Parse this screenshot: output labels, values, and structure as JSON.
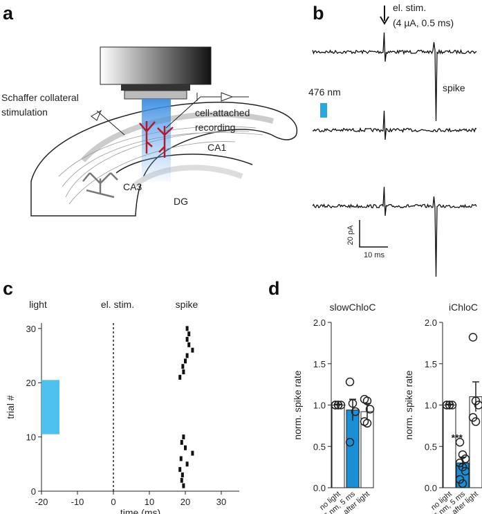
{
  "figure": {
    "panel_labels": [
      "a",
      "b",
      "c",
      "d"
    ]
  },
  "diagram": {
    "stimulation_label": [
      "Schaffer collateral",
      "stimulation"
    ],
    "recording_label": [
      "cell-attached",
      "recording"
    ],
    "regions": [
      "CA1",
      "CA3",
      "DG"
    ]
  },
  "traces": {
    "stim_label": [
      "el. stim.",
      "(4 µA, 0.5 ms)"
    ],
    "spike_label": "spike",
    "light_label": "476 nm",
    "light_color": "#29a8e0",
    "scale_y_label": "20 pA",
    "scale_x_label": "10 ms"
  },
  "chart_data": [
    {
      "type": "scatter",
      "xlabel": "time (ms)",
      "ylabel": "trial #",
      "annotations": [
        "light",
        "el. stim.",
        "spike"
      ],
      "x": [
        19.5,
        19,
        19.2,
        18.5,
        20.5,
        18.8,
        22,
        20,
        19,
        19.5,
        18.5,
        19.5,
        19.3,
        20,
        20.5,
        22,
        21,
        20.5,
        21,
        20.5
      ],
      "y": [
        1,
        2,
        3,
        4,
        5,
        6,
        7,
        8,
        9,
        10,
        21,
        22,
        23,
        24,
        25,
        26,
        27,
        28,
        29,
        30
      ],
      "color": "#111111",
      "light": {
        "x": [
          -20,
          -15
        ],
        "y": [
          10.5,
          20.5
        ],
        "color": "#4ec1ef"
      },
      "stim_x": 0,
      "xlim": [
        -20,
        35
      ],
      "ylim": [
        0,
        31
      ],
      "xticks": [
        -20,
        -10,
        0,
        10,
        20,
        30
      ],
      "yticks": [
        0,
        10,
        20,
        30
      ]
    },
    {
      "type": "bar",
      "title": "slowChloC",
      "ylabel": "norm. spike rate",
      "categories": [
        "no light",
        "476 nm, 5 ms",
        "after light"
      ],
      "values": [
        1.0,
        0.94,
        0.92
      ],
      "errors": [
        0.01,
        0.13,
        0.1
      ],
      "colors": [
        "#ffffff",
        "#1b8fd5",
        "#ffffff"
      ],
      "points": [
        [
          1,
          1,
          1,
          1,
          1
        ],
        [
          1.28,
          1.02,
          0.92,
          0.55
        ],
        [
          1.07,
          1.05,
          0.95,
          0.8,
          0.78
        ]
      ],
      "ylim": [
        0,
        2
      ],
      "yticks": [
        {
          "value": 0,
          "label": "0.0"
        },
        {
          "value": 0.5,
          "label": "0.5"
        },
        {
          "value": 1,
          "label": "1.0"
        },
        {
          "value": 1.5,
          "label": "1.5"
        },
        {
          "value": 2,
          "label": "2.0"
        }
      ]
    },
    {
      "type": "bar",
      "title": "iChloC",
      "ylabel": "norm. spike rate",
      "categories": [
        "no light",
        "476 nm, 5 ms",
        "after light"
      ],
      "values": [
        1.0,
        0.3,
        1.1
      ],
      "errors": [
        0.01,
        0.07,
        0.18
      ],
      "colors": [
        "#ffffff",
        "#1b8fd5",
        "#ffffff"
      ],
      "points": [
        [
          1,
          1,
          1,
          1,
          1
        ],
        [
          0.55,
          0.4,
          0.35,
          0.3,
          0.25,
          0.2,
          0.1,
          0.05
        ],
        [
          1.82,
          1.05,
          1.0,
          0.85,
          0.8
        ]
      ],
      "annotation": "***",
      "annotation_category": 1,
      "ylim": [
        0,
        2
      ],
      "yticks": [
        {
          "value": 0,
          "label": "0.0"
        },
        {
          "value": 0.5,
          "label": "0.5"
        },
        {
          "value": 1,
          "label": "1.0"
        },
        {
          "value": 1.5,
          "label": "1.5"
        },
        {
          "value": 2,
          "label": "2.0"
        }
      ]
    }
  ]
}
